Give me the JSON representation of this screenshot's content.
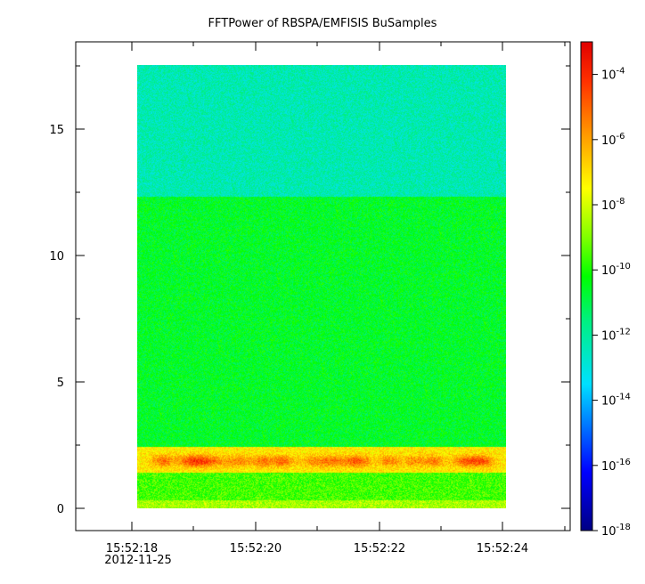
{
  "chart_data": {
    "type": "heatmap",
    "title": "FFTPower of RBSPA/EMFISIS  BuSamples",
    "xlabel": "",
    "ylabel": "",
    "x_axis": {
      "type": "time",
      "range": [
        "15:52:17.0",
        "15:52:25.0"
      ],
      "data_range": [
        "15:52:18.1",
        "15:52:24.1"
      ],
      "ticks": [
        "15:52:18",
        "15:52:20",
        "15:52:22",
        "15:52:24"
      ],
      "date_label": "2012-11-25"
    },
    "y_axis": {
      "range": [
        -1,
        18
      ],
      "data_range": [
        0,
        17.5
      ],
      "ticks": [
        0,
        5,
        10,
        15
      ]
    },
    "colorbar": {
      "scale": "log",
      "range": [
        1e-18,
        0.001
      ],
      "ticks": [
        {
          "base": "10",
          "exp": "-4",
          "value": 0.0001
        },
        {
          "base": "10",
          "exp": "-6",
          "value": 1e-06
        },
        {
          "base": "10",
          "exp": "-8",
          "value": 1e-08
        },
        {
          "base": "10",
          "exp": "-10",
          "value": 1e-10
        },
        {
          "base": "10",
          "exp": "-12",
          "value": 1e-12
        },
        {
          "base": "10",
          "exp": "-14",
          "value": 1e-14
        },
        {
          "base": "10",
          "exp": "-16",
          "value": 1e-16
        },
        {
          "base": "10",
          "exp": "-18",
          "value": 1e-18
        }
      ],
      "colormap": "rainbow"
    },
    "regions": [
      {
        "y_range": [
          0,
          0.3
        ],
        "log_power": -8.5
      },
      {
        "y_range": [
          0.3,
          1.4
        ],
        "log_power": -9.6
      },
      {
        "y_range": [
          1.4,
          2.4
        ],
        "log_power": -7.2
      },
      {
        "y_range": [
          2.4,
          12.3
        ],
        "log_power": -10.6
      },
      {
        "y_range": [
          12.3,
          17.5
        ],
        "log_power": -12.3
      }
    ]
  }
}
